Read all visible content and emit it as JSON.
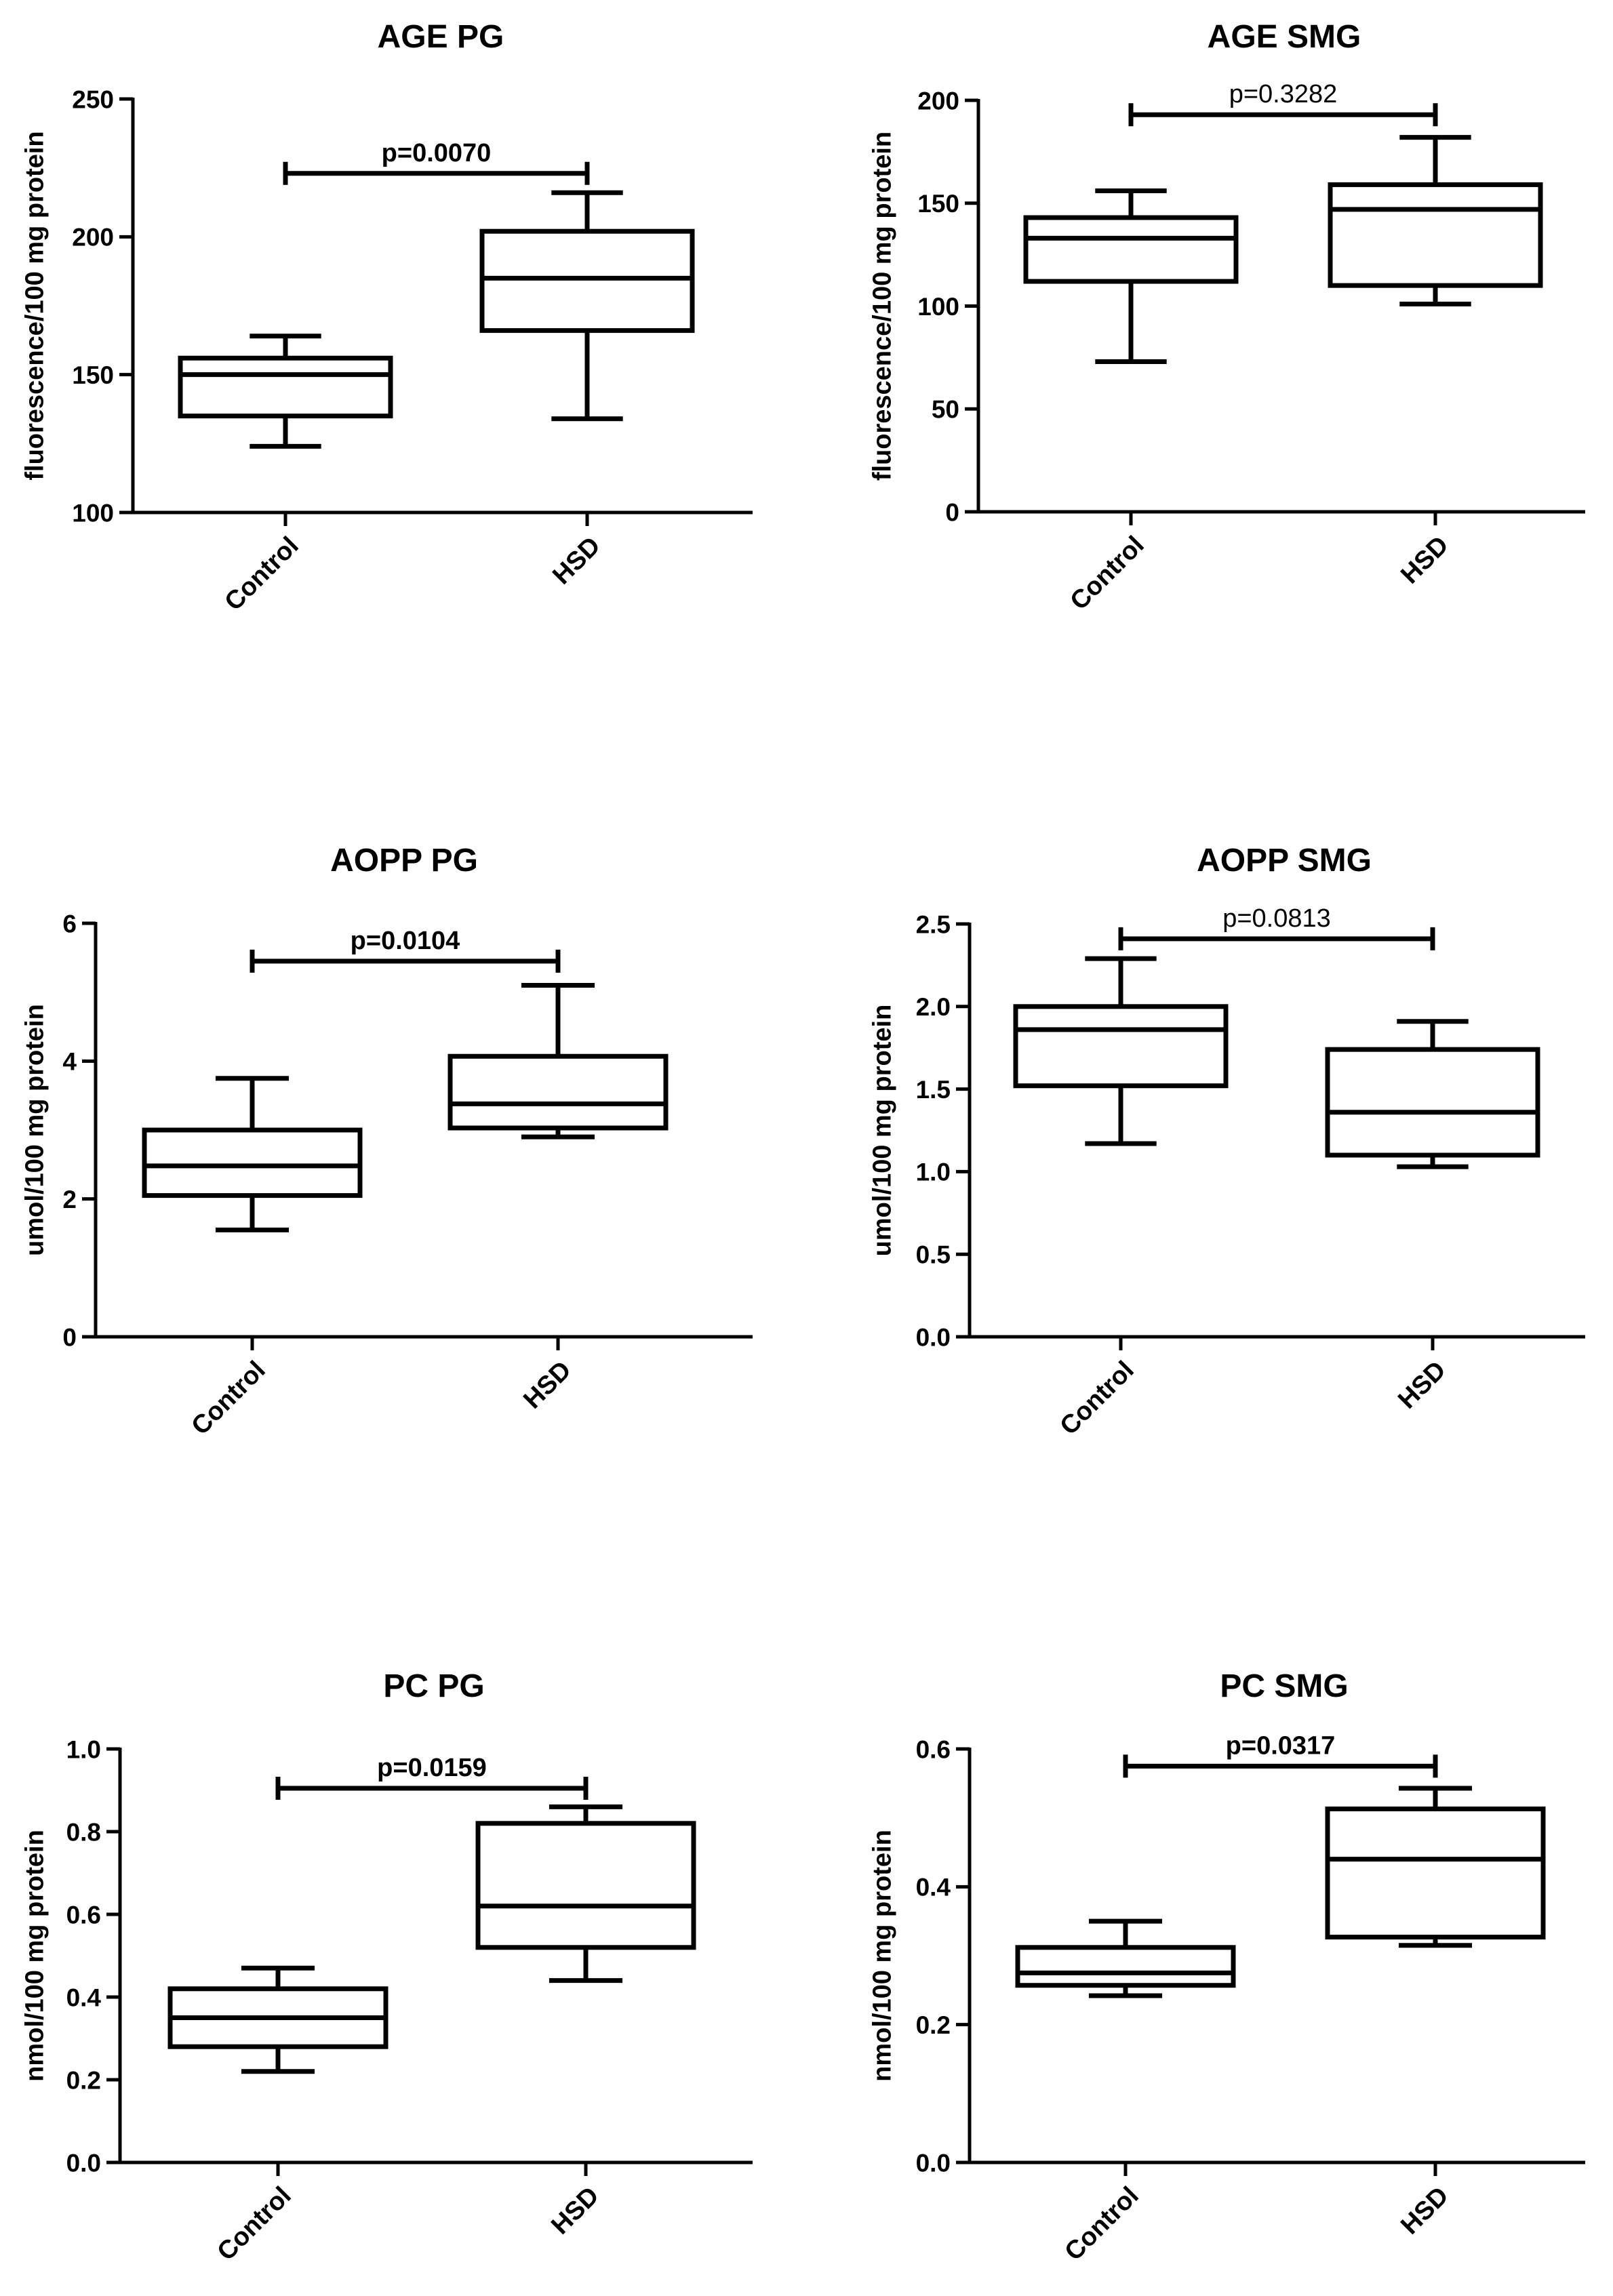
{
  "chart_data": [
    {
      "type": "box",
      "title": "AGE PG",
      "ylabel": "fluorescence/100 mg protein",
      "xlabel": "",
      "ylim": [
        100,
        250
      ],
      "yticks": [
        100,
        150,
        200,
        250
      ],
      "tick_labels": [
        "100",
        "150",
        "200",
        "250"
      ],
      "categories": [
        "Control",
        "HSD"
      ],
      "boxes": [
        {
          "min": 124,
          "q1": 135,
          "median": 150,
          "q3": 156,
          "max": 164
        },
        {
          "min": 134,
          "q1": 166,
          "median": 185,
          "q3": 202,
          "max": 216
        }
      ],
      "significance": {
        "label": "p=0.0070",
        "y": 223,
        "bold": true
      }
    },
    {
      "type": "box",
      "title": "AGE SMG",
      "ylabel": "fluorescence/100 mg protein",
      "xlabel": "",
      "ylim": [
        0,
        200
      ],
      "yticks": [
        0,
        50,
        100,
        150,
        200
      ],
      "tick_labels": [
        "0",
        "50",
        "100",
        "150",
        "200"
      ],
      "categories": [
        "Control",
        "HSD"
      ],
      "boxes": [
        {
          "min": 73,
          "q1": 112,
          "median": 133,
          "q3": 143,
          "max": 156
        },
        {
          "min": 101,
          "q1": 110,
          "median": 147,
          "q3": 159,
          "max": 182
        }
      ],
      "significance": {
        "label": "p=0.3282",
        "y": 193,
        "bold": false
      }
    },
    {
      "type": "box",
      "title": "AOPP PG",
      "ylabel": "umol/100 mg protein",
      "xlabel": "",
      "ylim": [
        0,
        6
      ],
      "yticks": [
        0,
        2,
        4,
        6
      ],
      "tick_labels": [
        "0",
        "2",
        "4",
        "6"
      ],
      "categories": [
        "Control",
        "HSD"
      ],
      "boxes": [
        {
          "min": 1.55,
          "q1": 2.05,
          "median": 2.48,
          "q3": 3.0,
          "max": 3.75
        },
        {
          "min": 2.9,
          "q1": 3.03,
          "median": 3.38,
          "q3": 4.07,
          "max": 5.1
        }
      ],
      "significance": {
        "label": "p=0.0104",
        "y": 5.45,
        "bold": true
      }
    },
    {
      "type": "box",
      "title": "AOPP SMG",
      "ylabel": "umol/100 mg protein",
      "xlabel": "",
      "ylim": [
        0,
        2.5
      ],
      "yticks": [
        0,
        0.5,
        1.0,
        1.5,
        2.0,
        2.5
      ],
      "tick_labels": [
        "0.0",
        "0.5",
        "1.0",
        "1.5",
        "2.0",
        "2.5"
      ],
      "categories": [
        "Control",
        "HSD"
      ],
      "boxes": [
        {
          "min": 1.17,
          "q1": 1.52,
          "median": 1.86,
          "q3": 2.0,
          "max": 2.29
        },
        {
          "min": 1.03,
          "q1": 1.1,
          "median": 1.36,
          "q3": 1.74,
          "max": 1.91
        }
      ],
      "significance": {
        "label": "p=0.0813",
        "y": 2.41,
        "bold": false
      }
    },
    {
      "type": "box",
      "title": "PC PG",
      "ylabel": "nmol/100 mg protein",
      "xlabel": "",
      "ylim": [
        0,
        1.0
      ],
      "yticks": [
        0,
        0.2,
        0.4,
        0.6,
        0.8,
        1.0
      ],
      "tick_labels": [
        "0.0",
        "0.2",
        "0.4",
        "0.6",
        "0.8",
        "1.0"
      ],
      "categories": [
        "Control",
        "HSD"
      ],
      "boxes": [
        {
          "min": 0.22,
          "q1": 0.28,
          "median": 0.35,
          "q3": 0.42,
          "max": 0.47
        },
        {
          "min": 0.44,
          "q1": 0.52,
          "median": 0.62,
          "q3": 0.82,
          "max": 0.86
        }
      ],
      "significance": {
        "label": "p=0.0159",
        "y": 0.905,
        "bold": true
      }
    },
    {
      "type": "box",
      "title": "PC SMG",
      "ylabel": "nmol/100 mg protein",
      "xlabel": "",
      "ylim": [
        0,
        0.6
      ],
      "yticks": [
        0,
        0.2,
        0.4,
        0.6
      ],
      "tick_labels": [
        "0.0",
        "0.2",
        "0.4",
        "0.6"
      ],
      "categories": [
        "Control",
        "HSD"
      ],
      "boxes": [
        {
          "min": 0.242,
          "q1": 0.257,
          "median": 0.275,
          "q3": 0.312,
          "max": 0.35
        },
        {
          "min": 0.315,
          "q1": 0.327,
          "median": 0.44,
          "q3": 0.513,
          "max": 0.543
        }
      ],
      "significance": {
        "label": "p=0.0317",
        "y": 0.575,
        "bold": true
      }
    }
  ]
}
